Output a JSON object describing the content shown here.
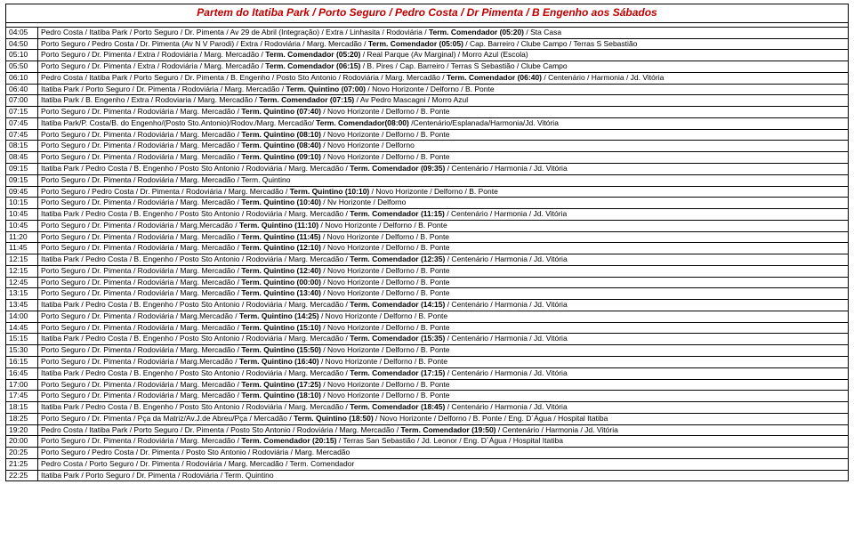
{
  "title_color": "#c00000",
  "title": "Partem do Itatiba Park / Porto Seguro / Pedro Costa / Dr Pimenta / B Engenho aos Sábados",
  "rows": [
    {
      "t": "04:05",
      "r": [
        [
          "Pedro Costa / Itatiba Park / Porto Seguro / Dr. Pimenta / Av 29 de Abril (Integração) / Extra / Linhasita / Rodoviária / "
        ],
        [
          "Term. Comendador (05:20)",
          true
        ],
        [
          " / Sta Casa"
        ]
      ]
    },
    {
      "t": "04:50",
      "r": [
        [
          "Porto Seguro / Pedro Costa / Dr. Pimenta (Av N V Parodi) / Extra / Rodoviária / Marg. Mercadão / "
        ],
        [
          "Term. Comendador (05:05)",
          true
        ],
        [
          " / Cap. Barreiro / Clube Campo / Terras S Sebastião"
        ]
      ]
    },
    {
      "t": "05:10",
      "r": [
        [
          "Porto Seguro / Dr. Pimenta / Extra / Rodoviária / Marg. Mercadão / "
        ],
        [
          "Term. Comendador (05:20)",
          true
        ],
        [
          " / Real Parque (Av Marginal) / Morro Azul (Escola)"
        ]
      ]
    },
    {
      "t": "05:50",
      "r": [
        [
          "Porto Seguro / Dr. Pimenta / Extra / Rodoviária / Marg. Mercadão / "
        ],
        [
          "Term. Comendador (06:15)",
          true
        ],
        [
          " / B. Pires / Cap. Barreiro / Terras S Sebastião / Clube Campo"
        ]
      ]
    },
    {
      "t": "06:10",
      "r": [
        [
          "Pedro Costa / Itatiba Park / Porto Seguro / Dr. Pimenta / B. Engenho / Posto Sto Antonio / Rodoviária / Marg. Mercadão / "
        ],
        [
          "Term. Comendador (06:40)",
          true
        ],
        [
          " / Centenário / Harmonia / Jd. Vitória"
        ]
      ]
    },
    {
      "t": "06:40",
      "r": [
        [
          "Itatiba Park / Porto Seguro / Dr. Pimenta / Rodoviária / Marg. Mercadão / "
        ],
        [
          "Term. Quintino (07:00)",
          true
        ],
        [
          " / Novo Horizonte / Delforno / B. Ponte"
        ]
      ]
    },
    {
      "t": "07:00",
      "r": [
        [
          "Itatiba Park / B. Engenho / Extra / Rodoviaria / Marg. Mercadão / "
        ],
        [
          "Term. Comendador (07:15)",
          true
        ],
        [
          " / Av Pedro Mascagni / Morro Azul"
        ]
      ]
    },
    {
      "t": "07:15",
      "r": [
        [
          "Porto Seguro / Dr. Pimenta / Rodoviária / Marg. Mercadão / "
        ],
        [
          "Term. Quintino (07:40)",
          true
        ],
        [
          " / Novo Horizonte / Delforno / B. Ponte"
        ]
      ]
    },
    {
      "t": "07:45",
      "r": [
        [
          "Itatiba Park/P. Costa/B. do Engenho/(Posto Sto.Antonio)/Rodov./Marg. Mercadão/ "
        ],
        [
          "Term. Comendador(08:00)",
          true
        ],
        [
          " /Centenário/Esplanada/Harmonia/Jd. Vitória"
        ]
      ]
    },
    {
      "t": "07:45",
      "r": [
        [
          "Porto Seguro / Dr. Pimenta / Rodoviária / Marg. Mercadão / "
        ],
        [
          "Term. Quintino (08:10)",
          true
        ],
        [
          " / Novo Horizonte / Delforno / B. Ponte"
        ]
      ]
    },
    {
      "t": "08:15",
      "r": [
        [
          "Porto Seguro / Dr. Pimenta / Rodoviária / Marg. Mercadão / "
        ],
        [
          "Term. Quintino (08:40)",
          true
        ],
        [
          " / Novo Horizonte / Delforno"
        ]
      ]
    },
    {
      "t": "08:45",
      "r": [
        [
          "Porto Seguro / Dr. Pimenta / Rodoviária / Marg. Mercadão / "
        ],
        [
          "Term. Quintino (09:10)",
          true
        ],
        [
          " / Novo Horizonte / Delforno / B. Ponte"
        ]
      ]
    },
    {
      "t": "09:15",
      "r": [
        [
          "Itatiba Park / Pedro Costa / B. Engenho / Posto Sto Antonio / Rodoviária / Marg. Mercadão / "
        ],
        [
          "Term. Comendador (09:35)",
          true
        ],
        [
          " / Centenário / Harmonia / Jd. Vitória"
        ]
      ]
    },
    {
      "t": "09:15",
      "r": [
        [
          "Porto Seguro / Dr. Pimenta / Rodoviária / Marg. Mercadão / Term. Quintino"
        ]
      ]
    },
    {
      "t": "09:45",
      "r": [
        [
          "Porto Seguro / Pedro Costa / Dr. Pimenta / Rodoviária / Marg. Mercadão / "
        ],
        [
          "Term. Quintino (10:10)",
          true
        ],
        [
          " / Novo Horizonte / Delforno / B. Ponte"
        ]
      ]
    },
    {
      "t": "10:15",
      "r": [
        [
          "Porto Seguro / Dr. Pimenta / Rodoviária / Marg. Mercadão / "
        ],
        [
          "Term. Quintino (10:40)",
          true
        ],
        [
          " / Nv Horizonte / Delforno"
        ]
      ]
    },
    {
      "t": "10:45",
      "r": [
        [
          "Itatiba Park / Pedro Costa / B. Engenho / Posto Sto Antonio / Rodoviária / Marg. Mercadão / "
        ],
        [
          "Term. Comendador (11:15)",
          true
        ],
        [
          " / Centenário / Harmonia / Jd. Vitória"
        ]
      ]
    },
    {
      "t": "10:45",
      "r": [
        [
          "Porto Seguro / Dr. Pimenta / Rodoviária / Marg.Mercadão / "
        ],
        [
          "Term. Quintino (11:10)",
          true
        ],
        [
          " / Novo Horizonte / Delforno / B. Ponte"
        ]
      ]
    },
    {
      "t": "11:20",
      "r": [
        [
          "Porto Seguro / Dr. Pimenta / Rodoviária / Marg. Mercadão / "
        ],
        [
          "Term. Quintino (11:45)",
          true
        ],
        [
          " / Novo Horizonte / Delforno / B. Ponte"
        ]
      ]
    },
    {
      "t": "11:45",
      "r": [
        [
          "Porto Seguro / Dr. Pimenta / Rodoviária / Marg. Mercadão / "
        ],
        [
          "Term. Quintino (12:10)",
          true
        ],
        [
          " / Novo Horizonte / Delforno / B. Ponte"
        ]
      ]
    },
    {
      "t": "12:15",
      "r": [
        [
          "Itatiba Park / Pedro Costa / B. Engenho / Posto Sto Antonio / Rodoviária / Marg. Mercadão / "
        ],
        [
          "Term. Comendador (12:35)",
          true
        ],
        [
          " / Centenário / Harmonia / Jd. Vitória"
        ]
      ]
    },
    {
      "t": "12:15",
      "r": [
        [
          "Porto Seguro / Dr. Pimenta / Rodoviária / Marg. Mercadão / "
        ],
        [
          "Term. Quintino (12:40)",
          true
        ],
        [
          " / Novo Horizonte / Delforno / B. Ponte"
        ]
      ]
    },
    {
      "t": "12:45",
      "r": [
        [
          "Porto Seguro / Dr. Pimenta / Rodoviária / Marg. Mercadão / "
        ],
        [
          "Term. Quintino (00:00)",
          true
        ],
        [
          " / Novo Horizonte / Delforno / B. Ponte"
        ]
      ]
    },
    {
      "t": "13:15",
      "r": [
        [
          "Porto Seguro / Dr. Pimenta / Rodoviária / Marg. Mercadão / "
        ],
        [
          "Term. Quintino (13:40)",
          true
        ],
        [
          " / Novo Horizonte / Delforno / B. Ponte"
        ]
      ]
    },
    {
      "t": "13:45",
      "r": [
        [
          "Itatiba Park / Pedro Costa / B. Engenho / Posto Sto Antonio / Rodoviária / Marg. Mercadão / "
        ],
        [
          "Term. Comendador (14:15)",
          true
        ],
        [
          " / Centenário / Harmonia / Jd. Vitória"
        ]
      ]
    },
    {
      "t": "14:00",
      "r": [
        [
          "Porto Seguro / Dr. Pimenta / Rodoviária / Marg.Mercadão / "
        ],
        [
          "Term. Quintino (14:25)",
          true
        ],
        [
          " / Novo Horizonte / Delforno / B. Ponte"
        ]
      ]
    },
    {
      "t": "14:45",
      "r": [
        [
          "Porto Seguro / Dr. Pimenta / Rodoviária / Marg. Mercadão / "
        ],
        [
          "Term. Quintino (15:10)",
          true
        ],
        [
          " / Novo Horizonte / Delforno / B. Ponte"
        ]
      ]
    },
    {
      "t": "15:15",
      "r": [
        [
          "Itatiba Park / Pedro Costa / B. Engenho / Posto Sto Antonio / Rodoviária / Marg. Mercadão / "
        ],
        [
          "Term. Comendador (15:35)",
          true
        ],
        [
          " / Centenário / Harmonia / Jd. Vitória"
        ]
      ]
    },
    {
      "t": "15:30",
      "r": [
        [
          "Porto Seguro / Dr. Pimenta / Rodoviária / Marg. Mercadão / "
        ],
        [
          "Term. Quintino (15:50)",
          true
        ],
        [
          " / Novo Horizonte / Delforno / B. Ponte"
        ]
      ]
    },
    {
      "t": "16:15",
      "r": [
        [
          "Porto Seguro / Dr. Pimenta / Rodoviária / Marg.Mercadão / "
        ],
        [
          "Term. Quintino (16:40)",
          true
        ],
        [
          " / Novo Horizonte / Delforno / B. Ponte"
        ]
      ]
    },
    {
      "t": "16:45",
      "r": [
        [
          "Itatiba Park / Pedro Costa / B. Engenho / Posto Sto Antonio / Rodoviária / Marg. Mercadão / "
        ],
        [
          "Term. Comendador (17:15)",
          true
        ],
        [
          " / Centenário / Harmonia / Jd. Vitória"
        ]
      ]
    },
    {
      "t": "17:00",
      "r": [
        [
          "Porto Seguro / Dr. Pimenta / Rodoviária / Marg. Mercadão / "
        ],
        [
          "Term. Quintino (17:25)",
          true
        ],
        [
          " / Novo Horizonte / Delforno / B. Ponte"
        ]
      ]
    },
    {
      "t": "17:45",
      "r": [
        [
          "Porto Seguro / Dr. Pimenta / Rodoviária / Marg. Mercadão / "
        ],
        [
          "Term. Quintino (18:10)",
          true
        ],
        [
          " / Novo Horizonte / Delforno / B. Ponte"
        ]
      ]
    },
    {
      "t": "18:15",
      "r": [
        [
          "Itatiba Park / Pedro Costa / B. Engenho / Posto Sto Antonio / Rodoviária / Marg. Mercadão / "
        ],
        [
          "Term. Comendador (18:45)",
          true
        ],
        [
          " / Centenário / Harmonia / Jd. Vitória"
        ]
      ]
    },
    {
      "t": "18:25",
      "r": [
        [
          "Porto Seguro / Dr. Pimenta / Pça da Matriz/Av.J.de Abreu/Pça / Mercadão / "
        ],
        [
          "Term. Quintino (18:50)",
          true
        ],
        [
          " / Novo Horizonte / Delforno / B. Ponte / Eng. D´Água / Hospital Itatiba"
        ]
      ]
    },
    {
      "t": "19:20",
      "r": [
        [
          "Pedro Costa / Itatiba Park / Porto Seguro / Dr. Pimenta / Posto Sto Antonio / Rodoviária / Marg. Mercadão / "
        ],
        [
          "Term. Comendador (19:50)",
          true
        ],
        [
          " / Centenário / Harmonia / Jd. Vitória"
        ]
      ]
    },
    {
      "t": "20:00",
      "r": [
        [
          "Porto Seguro / Dr. Pimenta / Rodoviária / Marg. Mercadão / "
        ],
        [
          "Term. Comendador (20:15)",
          true
        ],
        [
          " / Terras San Sebastião / Jd. Leonor / Eng. D´Água / Hospital Itatiba"
        ]
      ]
    },
    {
      "t": "20:25",
      "r": [
        [
          "Porto Seguro / Pedro Costa / Dr. Pimenta / Posto Sto Antonio / Rodoviária / Marg. Mercadão"
        ]
      ]
    },
    {
      "t": "21:25",
      "r": [
        [
          "Pedro Costa / Porto Seguro / Dr. Pimenta / Rodoviária / Marg. Mercadão / Term. Comendador"
        ]
      ]
    },
    {
      "t": "22:25",
      "r": [
        [
          "Itatiba Park / Porto Seguro / Dr. Pimenta / Rodoviária / Term. Quintino"
        ]
      ]
    }
  ]
}
